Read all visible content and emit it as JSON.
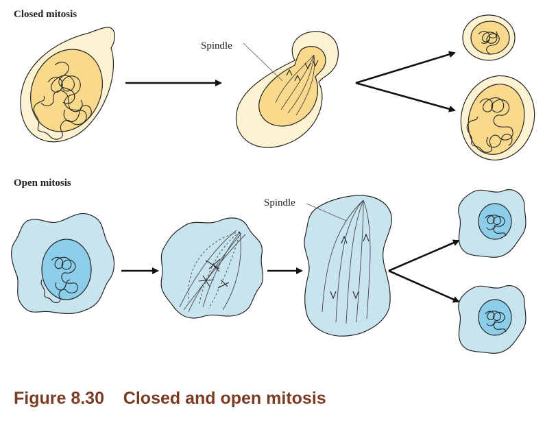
{
  "closed_mitosis": {
    "title": "Closed mitosis",
    "spindle_label": "Spindle"
  },
  "open_mitosis": {
    "title": "Open mitosis",
    "spindle_label": "Spindle"
  },
  "caption": {
    "figure_number": "Figure 8.30",
    "figure_title": "Closed and open mitosis"
  },
  "colors": {
    "yeast_cell": "#fdf2d2",
    "yeast_nucleus": "#f9d98c",
    "animal_cell": "#c8e4ef",
    "animal_nucleus": "#8ccde9",
    "caption": "#7a3b22"
  }
}
